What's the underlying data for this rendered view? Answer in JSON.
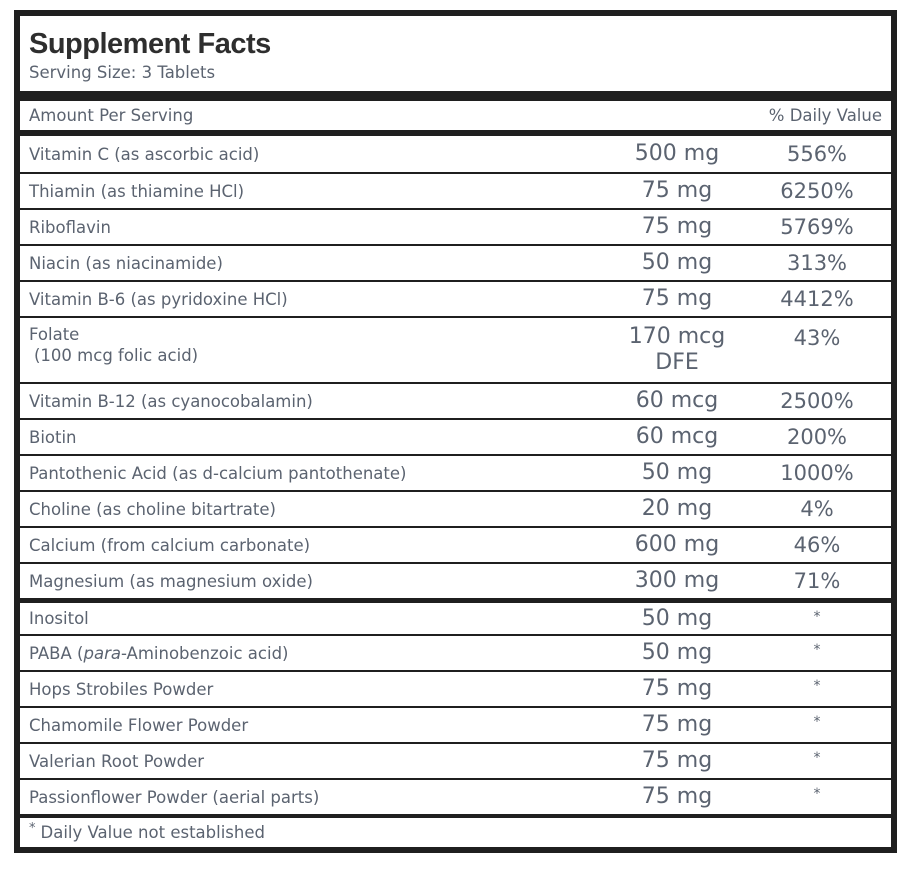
{
  "label": {
    "title": "Supplement Facts",
    "serving_size": "Serving Size: 3 Tablets",
    "header": {
      "amount_label": "Amount Per Serving",
      "dv_label": "% Daily Value"
    },
    "footnote": {
      "mark": "*",
      "text": "Daily Value not established"
    },
    "colors": {
      "text": "#5b6370",
      "title": "#2e2e2e",
      "rule": "#1f1f1f",
      "background": "#ffffff"
    }
  },
  "rows": [
    {
      "name": "Vitamin C (as ascorbic acid)",
      "amount": "500 mg",
      "dv": "556%"
    },
    {
      "name": "Thiamin (as thiamine HCl)",
      "amount": "75 mg",
      "dv": "6250%"
    },
    {
      "name": "Riboflavin",
      "amount": "75 mg",
      "dv": "5769%"
    },
    {
      "name": "Niacin (as niacinamide)",
      "amount": "50 mg",
      "dv": "313%"
    },
    {
      "name": "Vitamin B-6 (as pyridoxine HCl)",
      "amount": "75 mg",
      "dv": "4412%"
    },
    {
      "name": "Folate",
      "name_sub": "(100 mcg folic acid)",
      "amount": "170 mcg",
      "amount_sub": "DFE",
      "dv": "43%"
    },
    {
      "name": "Vitamin B-12 (as cyanocobalamin)",
      "amount": "60 mcg",
      "dv": "2500%"
    },
    {
      "name": "Biotin",
      "amount": "60 mcg",
      "dv": "200%"
    },
    {
      "name": "Pantothenic Acid (as d-calcium pantothenate)",
      "amount": "50 mg",
      "dv": "1000%"
    },
    {
      "name": "Choline (as choline bitartrate)",
      "amount": "20 mg",
      "dv": "4%"
    },
    {
      "name": "Calcium (from calcium carbonate)",
      "amount": "600 mg",
      "dv": "46%"
    },
    {
      "name": "Magnesium (as magnesium oxide)",
      "amount": "300 mg",
      "dv": "71%"
    },
    {
      "name": "Inositol",
      "amount": "50 mg",
      "dv": "*",
      "section_start": true
    },
    {
      "name_pre": "PABA (",
      "name_italic": "para",
      "name_post": "-Aminobenzoic acid)",
      "amount": "50 mg",
      "dv": "*"
    },
    {
      "name": "Hops Strobiles Powder",
      "amount": "75 mg",
      "dv": "*"
    },
    {
      "name": "Chamomile Flower Powder",
      "amount": "75 mg",
      "dv": "*"
    },
    {
      "name": "Valerian Root Powder",
      "amount": "75 mg",
      "dv": "*"
    },
    {
      "name": "Passionflower Powder (aerial parts)",
      "amount": "75 mg",
      "dv": "*"
    }
  ]
}
